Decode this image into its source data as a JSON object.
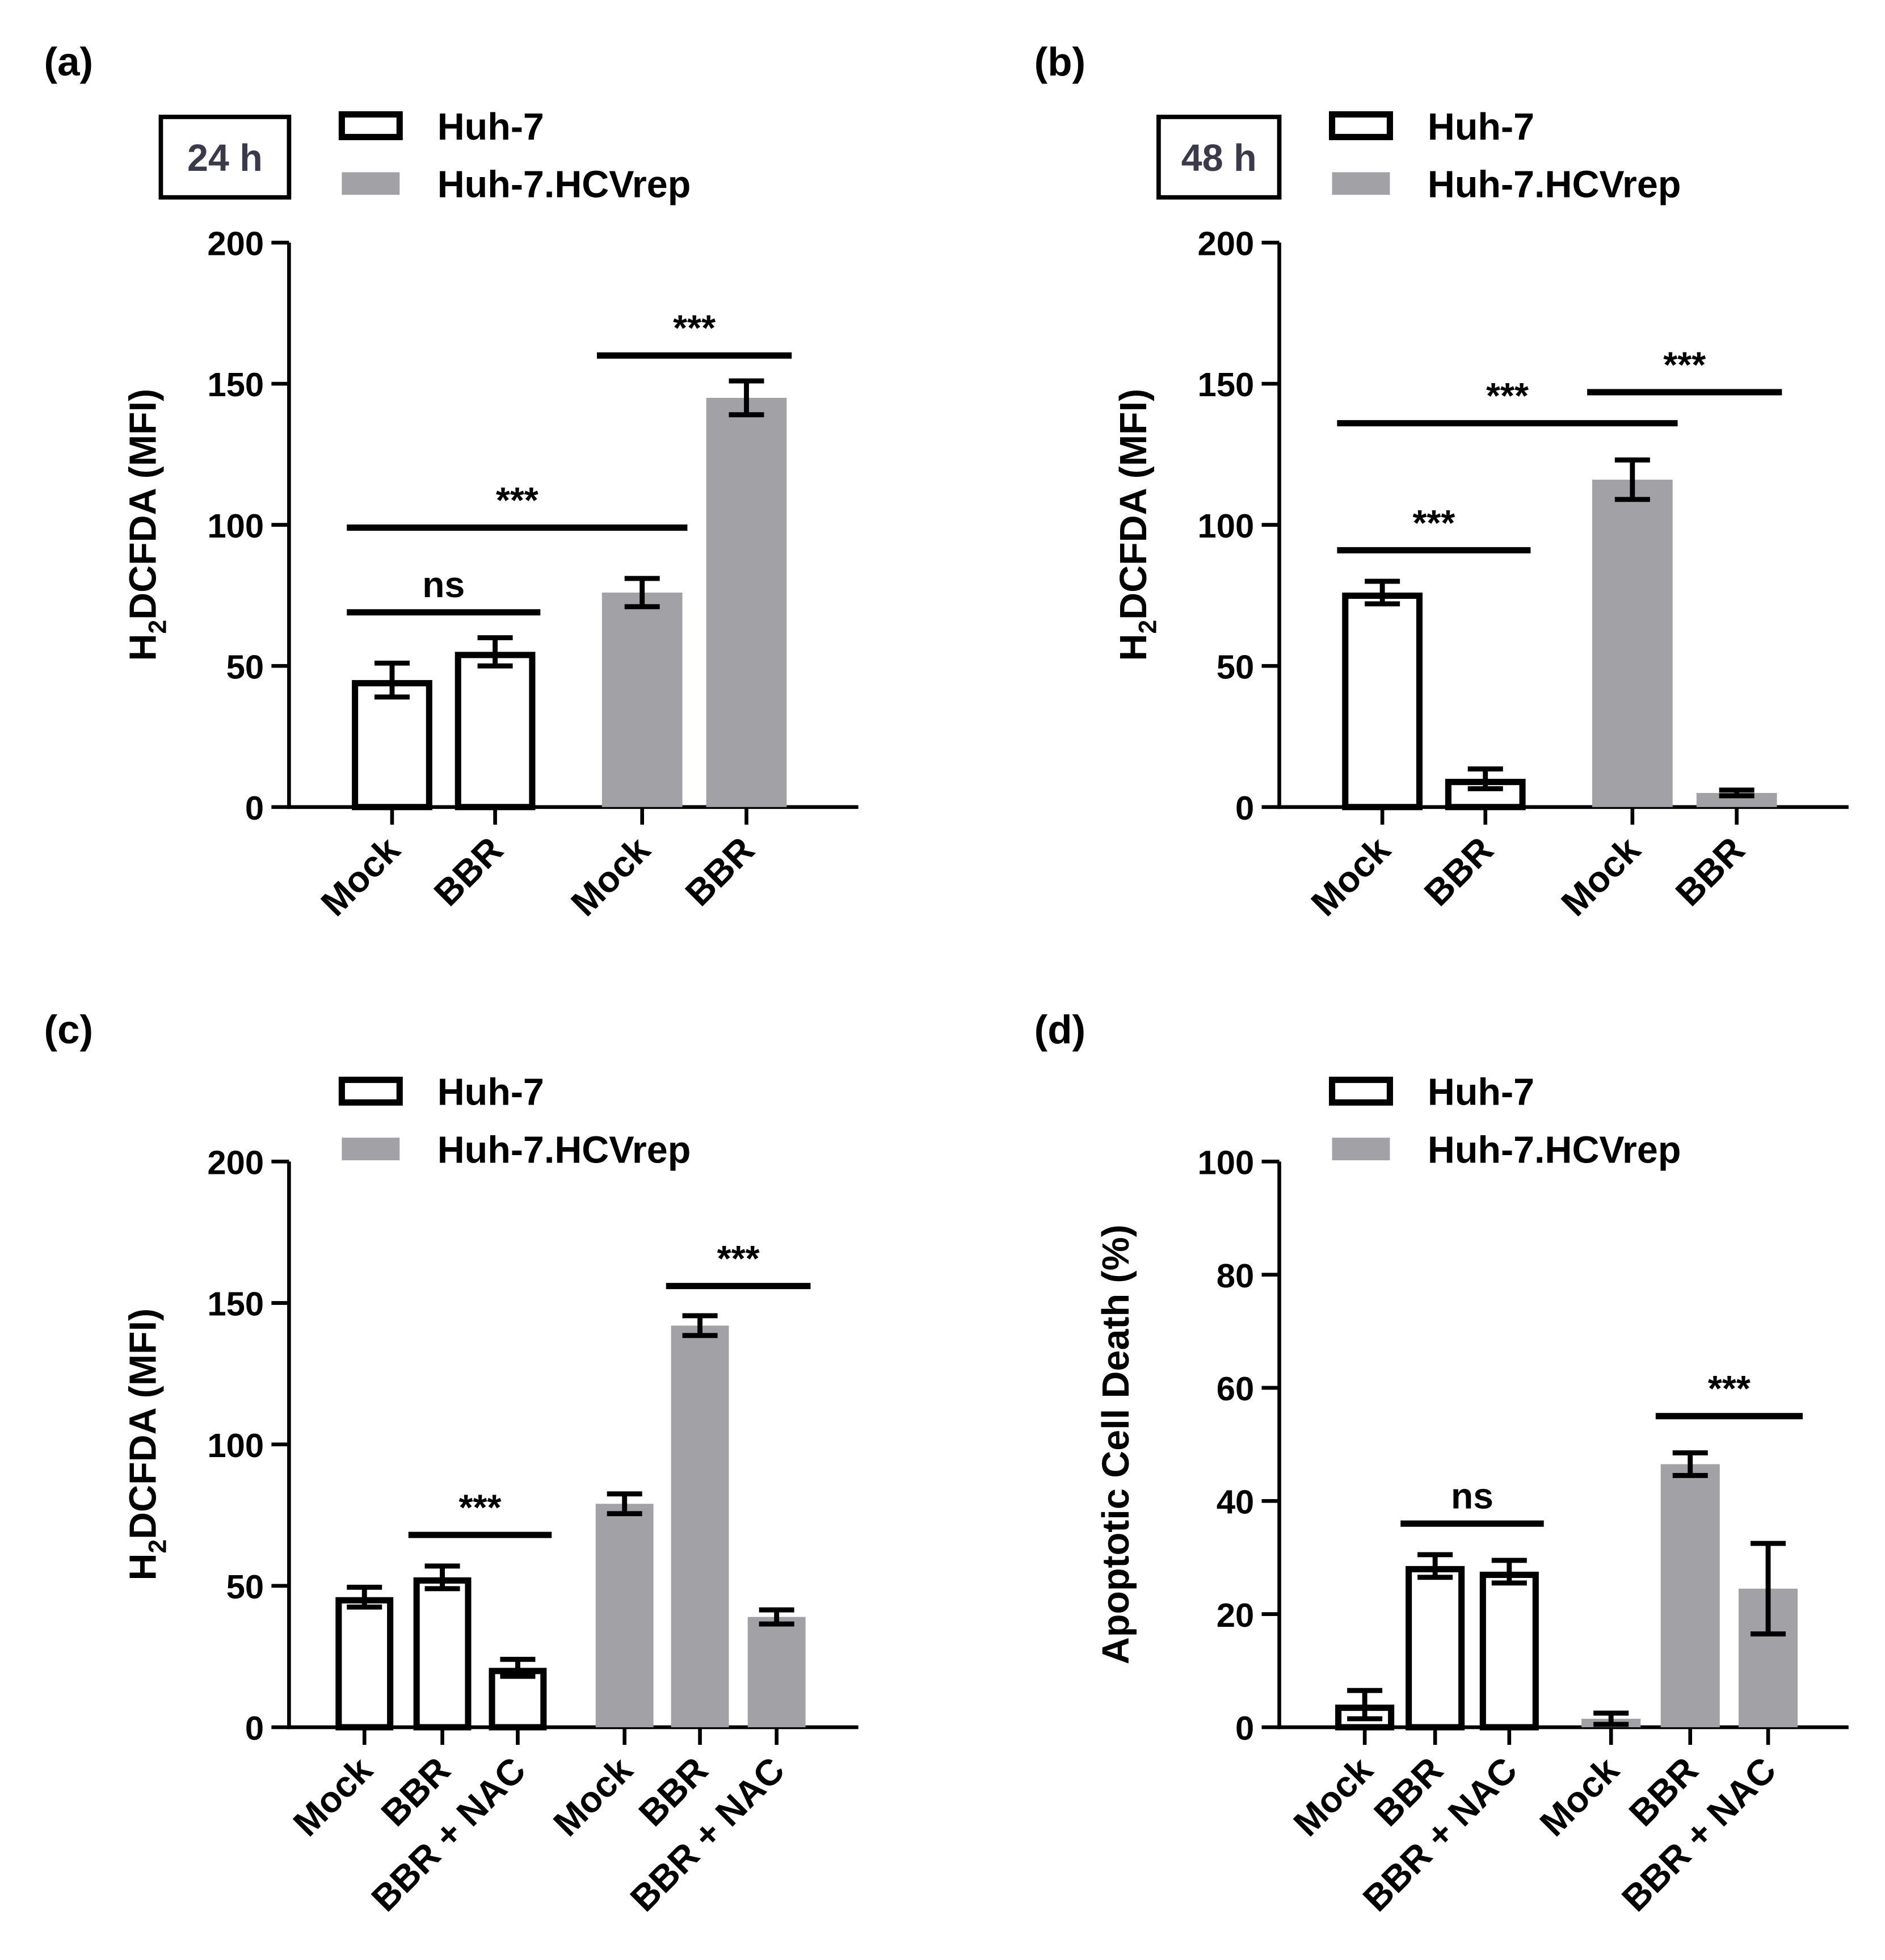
{
  "legend": {
    "series": [
      "Huh-7",
      "Huh-7.HCVrep"
    ]
  },
  "colors": {
    "series_fill": [
      "#ffffff",
      "#a2a2a6"
    ],
    "series_stroke": [
      "#000000",
      "#a2a2a6"
    ],
    "time_label_text": "#3a3a4a"
  },
  "chart_data": [
    {
      "type": "bar",
      "panel_label": "(a)",
      "time_label": "24 h",
      "ylabel": "H2DCFDA (MFI)",
      "ylabel_main": "H",
      "ylabel_sub": "2",
      "ylabel_rest": "DCFDA (MFI)",
      "ylim": [
        0,
        200
      ],
      "yticks": [
        0,
        50,
        100,
        150,
        200
      ],
      "categories": [
        "Mock",
        "BBR",
        "Mock",
        "BBR"
      ],
      "bars": [
        {
          "category": "Mock",
          "series": "Huh-7",
          "value": 45,
          "error": 6
        },
        {
          "category": "BBR",
          "series": "Huh-7",
          "value": 55,
          "error": 5
        },
        {
          "category": "Mock",
          "series": "Huh-7.HCVrep",
          "value": 76,
          "error": 5
        },
        {
          "category": "BBR",
          "series": "Huh-7.HCVrep",
          "value": 145,
          "error": 6
        }
      ],
      "annotations": [
        {
          "text": "***",
          "from": 2,
          "to": 3,
          "y": 160
        },
        {
          "text": "***",
          "from": 0,
          "to": 2,
          "y": 99
        },
        {
          "text": "ns",
          "from": 0,
          "to": 1,
          "y": 69
        }
      ]
    },
    {
      "type": "bar",
      "panel_label": "(b)",
      "time_label": "48 h",
      "ylabel": "H2DCFDA (MFI)",
      "ylabel_main": "H",
      "ylabel_sub": "2",
      "ylabel_rest": "DCFDA (MFI)",
      "ylim": [
        0,
        200
      ],
      "yticks": [
        0,
        50,
        100,
        150,
        200
      ],
      "categories": [
        "Mock",
        "BBR",
        "Mock",
        "BBR"
      ],
      "bars": [
        {
          "category": "Mock",
          "series": "Huh-7",
          "value": 76,
          "error": 4
        },
        {
          "category": "BBR",
          "series": "Huh-7",
          "value": 10,
          "error": 3.5
        },
        {
          "category": "Mock",
          "series": "Huh-7.HCVrep",
          "value": 116,
          "error": 7
        },
        {
          "category": "BBR",
          "series": "Huh-7.HCVrep",
          "value": 5,
          "error": 1
        }
      ],
      "annotations": [
        {
          "text": "***",
          "from": 2,
          "to": 3,
          "y": 147
        },
        {
          "text": "***",
          "from": 0,
          "to": 2,
          "y": 136
        },
        {
          "text": "***",
          "from": 0,
          "to": 1,
          "y": 91
        }
      ]
    },
    {
      "type": "bar",
      "panel_label": "(c)",
      "ylabel": "H2DCFDA (MFI)",
      "ylabel_main": "H",
      "ylabel_sub": "2",
      "ylabel_rest": "DCFDA (MFI)",
      "ylim": [
        0,
        200
      ],
      "yticks": [
        0,
        50,
        100,
        150,
        200
      ],
      "categories": [
        "Mock",
        "BBR",
        "BBR + NAC",
        "Mock",
        "BBR",
        "BBR + NAC"
      ],
      "bars": [
        {
          "category": "Mock",
          "series": "Huh-7",
          "value": 46,
          "error": 3.5
        },
        {
          "category": "BBR",
          "series": "Huh-7",
          "value": 53,
          "error": 4
        },
        {
          "category": "BBR + NAC",
          "series": "Huh-7",
          "value": 21,
          "error": 3
        },
        {
          "category": "Mock",
          "series": "Huh-7.HCVrep",
          "value": 79,
          "error": 3.5
        },
        {
          "category": "BBR",
          "series": "Huh-7.HCVrep",
          "value": 142,
          "error": 3.5
        },
        {
          "category": "BBR + NAC",
          "series": "Huh-7.HCVrep",
          "value": 39,
          "error": 2.5
        }
      ],
      "annotations": [
        {
          "text": "***",
          "from": 4,
          "to": 5,
          "y": 156
        },
        {
          "text": "***",
          "from": 1,
          "to": 2,
          "y": 68
        }
      ]
    },
    {
      "type": "bar",
      "panel_label": "(d)",
      "ylabel": "Apoptotic Cell Death (%)",
      "ylim": [
        0,
        100
      ],
      "yticks": [
        0,
        20,
        40,
        60,
        80,
        100
      ],
      "categories": [
        "Mock",
        "BBR",
        "BBR + NAC",
        "Mock",
        "BBR",
        "BBR + NAC"
      ],
      "bars": [
        {
          "category": "Mock",
          "series": "Huh-7",
          "value": 4,
          "error": 2.5
        },
        {
          "category": "BBR",
          "series": "Huh-7",
          "value": 28.5,
          "error": 2
        },
        {
          "category": "BBR + NAC",
          "series": "Huh-7",
          "value": 27.5,
          "error": 2
        },
        {
          "category": "Mock",
          "series": "Huh-7.HCVrep",
          "value": 1.5,
          "error": 1
        },
        {
          "category": "BBR",
          "series": "Huh-7.HCVrep",
          "value": 46.5,
          "error": 2
        },
        {
          "category": "BBR + NAC",
          "series": "Huh-7.HCVrep",
          "value": 24.5,
          "error": 8
        }
      ],
      "annotations": [
        {
          "text": "***",
          "from": 4,
          "to": 5,
          "y": 55
        },
        {
          "text": "ns",
          "from": 1,
          "to": 2,
          "y": 36
        }
      ]
    }
  ]
}
